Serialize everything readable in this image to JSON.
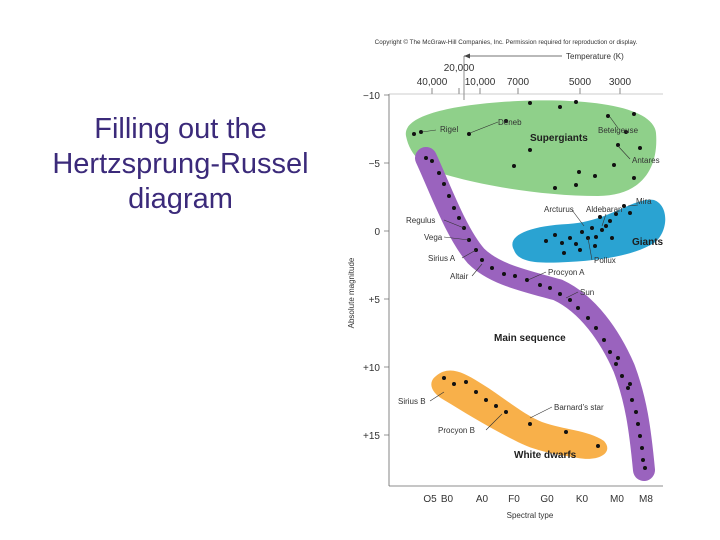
{
  "slide": {
    "title_lines": [
      "Filling out the",
      "Hertzsprung-Russel",
      "diagram"
    ]
  },
  "figure": {
    "copyright": "Copyright © The McGraw-Hill Companies, Inc. Permission required for reproduction or display.",
    "temperature_label": "Temperature (K)",
    "temperature_ticks": [
      "40,000",
      "20,000",
      "10,000",
      "7000",
      "5000",
      "3000"
    ],
    "magnitude_label": "Absolute magnitude",
    "magnitude_ticks": [
      "−10",
      "−5",
      "0",
      "+5",
      "+10",
      "+15"
    ],
    "spectral_label": "Spectral type",
    "spectral_ticks": [
      "O5",
      "B0",
      "A0",
      "F0",
      "G0",
      "K0",
      "M0",
      "M8"
    ],
    "regions": {
      "supergiants": "Supergiants",
      "giants": "Giants",
      "main_sequence": "Main sequence",
      "white_dwarfs": "White dwarfs"
    },
    "stars": {
      "rigel": "Rigel",
      "deneb": "Deneb",
      "betelgeuse": "Betelgeuse",
      "antares": "Antares",
      "mira": "Mira",
      "arcturus": "Arcturus",
      "aldebaran": "Aldebaran",
      "regulus": "Regulus",
      "vega": "Vega",
      "pollux": "Pollux",
      "sirius_a": "Sirius A",
      "procyon_a": "Procyon A",
      "altair": "Altair",
      "sun": "Sun",
      "sirius_b": "Sirius B",
      "barnards_star": "Barnard’s star",
      "procyon_b": "Procyon B"
    },
    "colors": {
      "supergiants": "#8fd08a",
      "giants": "#2aa3d2",
      "main_sequence": "#9a63be",
      "white_dwarfs": "#f8b04a",
      "dots": "#111111"
    }
  }
}
